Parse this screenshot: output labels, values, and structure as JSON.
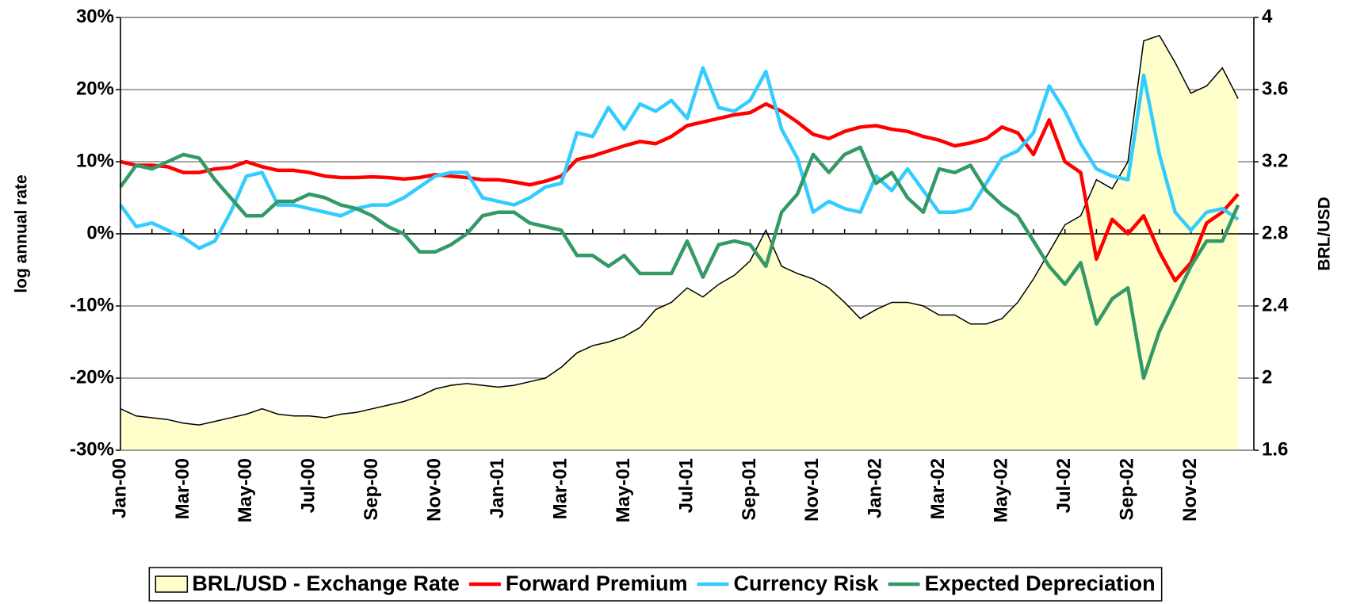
{
  "chart_data": {
    "type": "line",
    "ylabel": "log annual rate",
    "y2label": "BRL/USD",
    "categories": [
      "Jan-00",
      null,
      null,
      null,
      "Mar-00",
      null,
      null,
      null,
      "May-00",
      null,
      null,
      null,
      "Jul-00",
      null,
      null,
      null,
      "Sep-00",
      null,
      null,
      null,
      "Nov-00",
      null,
      null,
      null,
      "Jan-01",
      null,
      null,
      null,
      "Mar-01",
      null,
      null,
      null,
      "May-01",
      null,
      null,
      null,
      "Jul-01",
      null,
      null,
      null,
      "Sep-01",
      null,
      null,
      null,
      "Nov-01",
      null,
      null,
      null,
      "Jan-02",
      null,
      null,
      null,
      "Mar-02",
      null,
      null,
      null,
      "May-02",
      null,
      null,
      null,
      "Jul-02",
      null,
      null,
      null,
      "Sep-02",
      null,
      null,
      null,
      "Nov-02",
      null,
      null,
      null
    ],
    "series": [
      {
        "name": "BRL/USD - Exchange Rate",
        "type": "area",
        "axis": "y2",
        "color": "#ffffcc",
        "edge_color": "#000000",
        "values": [
          1.83,
          1.79,
          1.78,
          1.77,
          1.75,
          1.74,
          1.76,
          1.78,
          1.8,
          1.83,
          1.8,
          1.79,
          1.79,
          1.78,
          1.8,
          1.81,
          1.83,
          1.85,
          1.87,
          1.9,
          1.94,
          1.96,
          1.97,
          1.96,
          1.95,
          1.96,
          1.98,
          2.0,
          2.06,
          2.14,
          2.18,
          2.2,
          2.23,
          2.28,
          2.38,
          2.42,
          2.5,
          2.45,
          2.52,
          2.57,
          2.65,
          2.82,
          2.62,
          2.58,
          2.55,
          2.5,
          2.42,
          2.33,
          2.38,
          2.42,
          2.42,
          2.4,
          2.35,
          2.35,
          2.3,
          2.3,
          2.33,
          2.42,
          2.55,
          2.7,
          2.85,
          2.9,
          3.1,
          3.05,
          3.2,
          3.87,
          3.9,
          3.75,
          3.58,
          3.62,
          3.72,
          3.55
        ]
      },
      {
        "name": "Forward Premium",
        "type": "line",
        "color": "#ff0000",
        "values": [
          10,
          9.5,
          9.5,
          9.3,
          8.5,
          8.5,
          9,
          9.2,
          10,
          9.3,
          8.8,
          8.8,
          8.5,
          8.0,
          7.8,
          7.8,
          7.9,
          7.8,
          7.6,
          7.8,
          8.2,
          8.0,
          7.8,
          7.5,
          7.5,
          7.2,
          6.8,
          7.3,
          8.0,
          10.3,
          10.8,
          11.5,
          12.2,
          12.8,
          12.5,
          13.5,
          15.0,
          15.5,
          16.0,
          16.5,
          16.8,
          18.0,
          17.0,
          15.5,
          13.8,
          13.2,
          14.2,
          14.8,
          15.0,
          14.5,
          14.2,
          13.5,
          13.0,
          12.2,
          12.6,
          13.2,
          14.8,
          14.0,
          11.0,
          15.8,
          10.0,
          8.5,
          -3.5,
          2.0,
          0.0,
          2.5,
          -2.5,
          -6.5,
          -4.0,
          1.5,
          3.0,
          5.5
        ]
      },
      {
        "name": "Currency Risk",
        "type": "line",
        "color": "#33ccff",
        "values": [
          4,
          1,
          1.5,
          0.5,
          -0.5,
          -2,
          -1,
          3,
          8,
          8.5,
          4,
          4,
          3.5,
          3,
          2.5,
          3.5,
          4,
          4,
          5,
          6.5,
          8,
          8.5,
          8.5,
          5,
          4.5,
          4,
          5,
          6.5,
          7,
          14,
          13.5,
          17.5,
          14.5,
          18,
          17,
          18.5,
          16,
          23,
          17.5,
          17,
          18.5,
          22.5,
          14.5,
          10.5,
          3,
          4.5,
          3.5,
          3,
          8,
          6,
          9,
          6,
          3,
          3,
          3.5,
          7,
          10.5,
          11.5,
          14,
          20.5,
          17,
          12.5,
          9,
          8,
          7.5,
          22,
          11,
          3,
          0.5,
          3,
          3.5,
          2
        ]
      },
      {
        "name": "Expected Depreciation",
        "type": "line",
        "color": "#339966",
        "values": [
          6.5,
          9.5,
          9,
          10,
          11,
          10.5,
          7.5,
          5,
          2.5,
          2.5,
          4.5,
          4.5,
          5.5,
          5,
          4,
          3.5,
          2.5,
          1,
          0,
          -2.5,
          -2.5,
          -1.5,
          0,
          2.5,
          3,
          3,
          1.5,
          1,
          0.5,
          -3,
          -3,
          -4.5,
          -3,
          -5.5,
          -5.5,
          -5.5,
          -1,
          -6,
          -1.5,
          -1,
          -1.5,
          -4.5,
          3,
          5.5,
          11,
          8.5,
          11,
          12,
          7,
          8.5,
          5,
          3,
          9,
          8.5,
          9.5,
          6,
          4,
          2.5,
          -1,
          -4.5,
          -7,
          -4,
          -12.5,
          -9,
          -7.5,
          -20,
          -13.5,
          -9,
          -4.5,
          -1,
          -1,
          4
        ]
      }
    ],
    "ylim": [
      -30,
      30
    ],
    "yticks": [
      {
        "value": -30,
        "label": "-30%"
      },
      {
        "value": -20,
        "label": "-20%"
      },
      {
        "value": -10,
        "label": "-10%"
      },
      {
        "value": 0,
        "label": "0%"
      },
      {
        "value": 10,
        "label": "10%"
      },
      {
        "value": 20,
        "label": "20%"
      },
      {
        "value": 30,
        "label": "30%"
      }
    ],
    "y2lim": [
      1.6,
      4
    ],
    "y2ticks": [
      1.6,
      2,
      2.4,
      2.8,
      3.2,
      3.6,
      4
    ],
    "grid": true
  }
}
